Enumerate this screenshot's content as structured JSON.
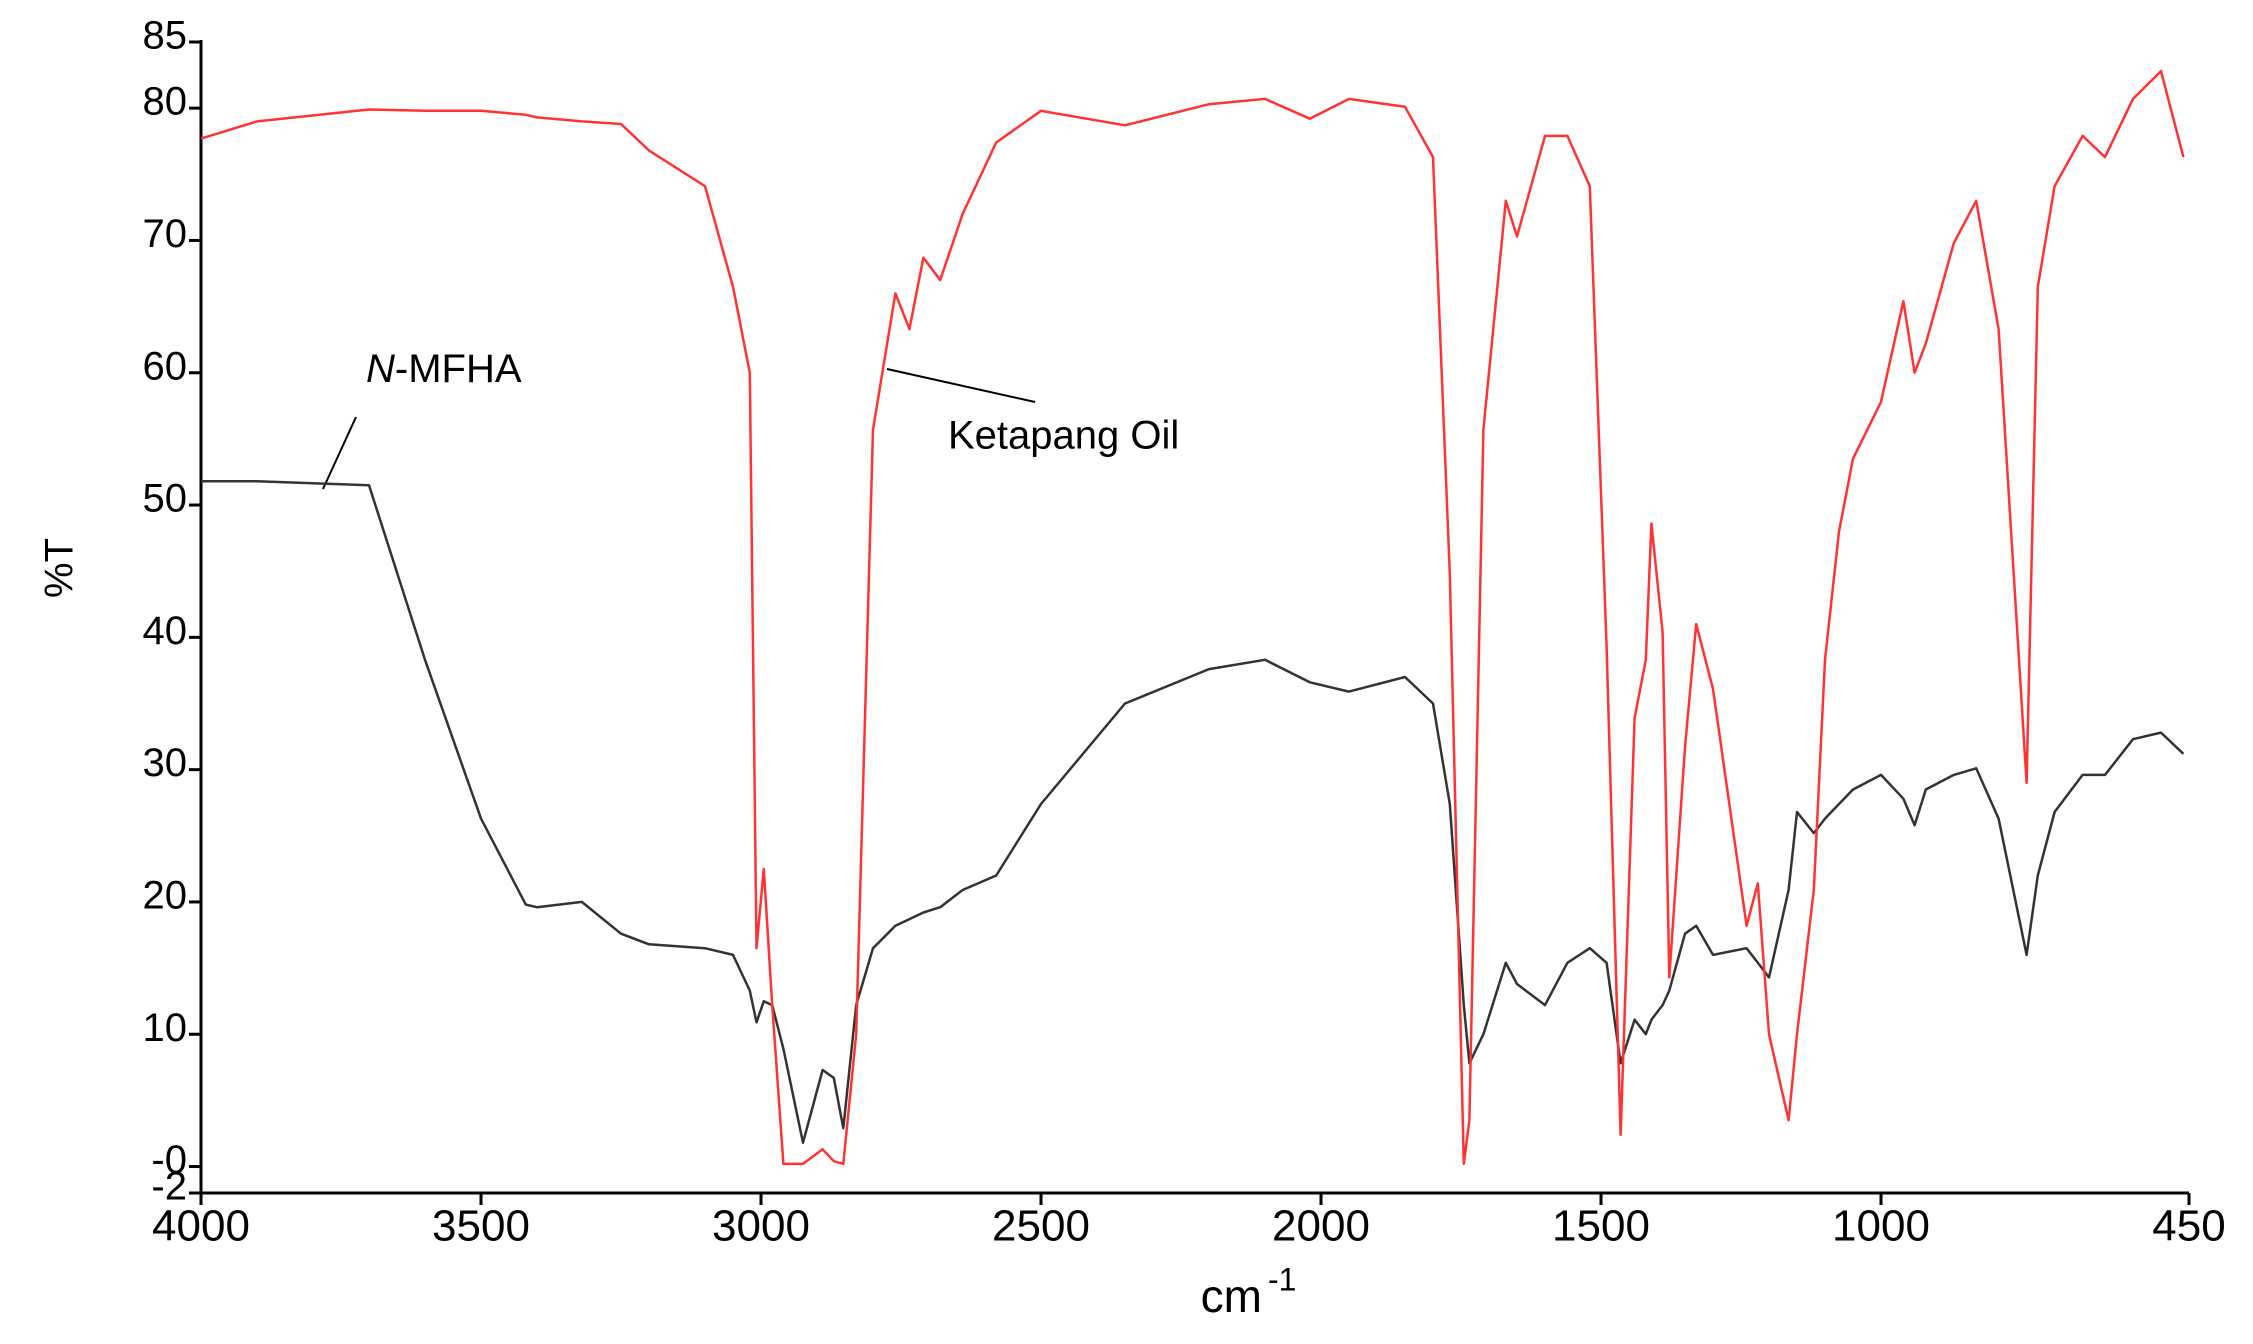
{
  "chart_data": {
    "type": "line",
    "y_label": "%T",
    "x_label": "cm",
    "x_label_superscript": "-1",
    "x": [
      4000,
      3900,
      3700,
      3600,
      3500,
      3420,
      3400,
      3320,
      3250,
      3200,
      3100,
      3050,
      3020,
      3008,
      2995,
      2980,
      2960,
      2925,
      2890,
      2870,
      2853,
      2830,
      2800,
      2760,
      2735,
      2710,
      2680,
      2640,
      2580,
      2500,
      2350,
      2200,
      2100,
      2020,
      1950,
      1850,
      1800,
      1770,
      1745,
      1735,
      1710,
      1670,
      1650,
      1600,
      1560,
      1520,
      1490,
      1465,
      1440,
      1420,
      1410,
      1390,
      1378,
      1350,
      1330,
      1300,
      1240,
      1220,
      1200,
      1165,
      1150,
      1120,
      1100,
      1075,
      1050,
      1000,
      960,
      940,
      920,
      870,
      830,
      790,
      740,
      720,
      690,
      640,
      600,
      550,
      500,
      460
    ],
    "series": [
      {
        "name": "N-MFHA",
        "color": "#333333",
        "values": [
          51.8,
          51.8,
          51.5,
          38.3,
          26.3,
          19.8,
          19.6,
          20.0,
          17.6,
          16.8,
          16.5,
          16.0,
          13.3,
          10.9,
          12.5,
          12.2,
          8.9,
          1.8,
          7.3,
          6.7,
          2.9,
          12.2,
          16.5,
          18.2,
          18.7,
          19.2,
          19.6,
          20.9,
          22.0,
          27.4,
          35.0,
          37.6,
          38.3,
          36.6,
          35.9,
          37.0,
          35.0,
          27.4,
          12.2,
          7.8,
          10.0,
          15.4,
          13.8,
          12.2,
          15.4,
          16.5,
          15.4,
          7.8,
          11.1,
          10.0,
          11.1,
          12.2,
          13.3,
          17.6,
          18.2,
          16.0,
          16.5,
          15.4,
          14.3,
          20.9,
          26.8,
          25.2,
          26.3,
          27.4,
          28.5,
          29.6,
          27.8,
          25.8,
          28.5,
          29.6,
          30.1,
          26.3,
          16.0,
          22.0,
          26.8,
          29.6,
          29.6,
          32.3,
          32.8,
          31.2
        ]
      },
      {
        "name": "Ketapang Oil",
        "color": "#ff3333",
        "values": [
          77.7,
          79.0,
          79.9,
          79.8,
          79.8,
          79.5,
          79.3,
          79.0,
          78.8,
          76.8,
          74.1,
          66.5,
          60.0,
          16.5,
          22.5,
          12.2,
          0.2,
          0.2,
          1.3,
          0.4,
          0.2,
          10.0,
          55.7,
          66.0,
          63.3,
          68.7,
          67.0,
          72.0,
          77.4,
          79.8,
          78.7,
          80.3,
          80.7,
          79.2,
          80.7,
          80.1,
          76.3,
          44.8,
          0.2,
          3.5,
          55.7,
          73.0,
          70.3,
          77.9,
          77.9,
          74.1,
          39.3,
          2.4,
          33.9,
          38.3,
          48.6,
          40.4,
          14.3,
          31.7,
          41.0,
          36.1,
          18.2,
          21.4,
          10.0,
          3.5,
          10.0,
          20.9,
          38.3,
          48.0,
          53.5,
          57.8,
          65.4,
          60.0,
          62.2,
          69.8,
          73.0,
          63.3,
          29.0,
          66.5,
          74.1,
          77.9,
          76.3,
          80.7,
          82.8,
          76.3
        ]
      }
    ],
    "xlim": [
      4000,
      450
    ],
    "xticks": [
      4000,
      3500,
      3000,
      2500,
      2000,
      1500,
      1000,
      450
    ],
    "ylim": [
      -2,
      85
    ],
    "yticks": [
      -2,
      {
        "value": 0,
        "label": "-0"
      },
      10,
      20,
      30,
      40,
      50,
      60,
      70,
      80,
      85
    ],
    "grid": false
  }
}
